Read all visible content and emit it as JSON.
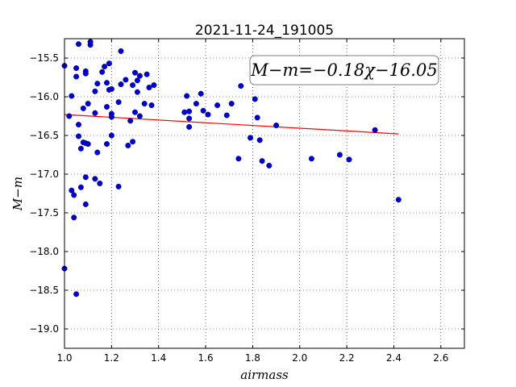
{
  "chart_data": {
    "type": "scatter",
    "title": "2021-11-24_191005",
    "xlabel": "airmass",
    "ylabel": "M−m",
    "xlim": [
      1.0,
      2.7
    ],
    "ylim": [
      -19.25,
      -15.25
    ],
    "y_inverted": false,
    "grid": true,
    "xticks": [
      1.0,
      1.2,
      1.4,
      1.6,
      1.8,
      2.0,
      2.2,
      2.4,
      2.6
    ],
    "xtick_labels": [
      "1.0",
      "1.2",
      "1.4",
      "1.6",
      "1.8",
      "2.0",
      "2.2",
      "2.4",
      "2.6"
    ],
    "yticks": [
      -15.5,
      -16.0,
      -16.5,
      -17.0,
      -17.5,
      -18.0,
      -18.5,
      -19.0
    ],
    "ytick_labels": [
      "−15.5",
      "−16.0",
      "−16.5",
      "−17.0",
      "−17.5",
      "−18.0",
      "−18.5",
      "−19.0"
    ],
    "annotation": "M−m=−0.18χ−16.05",
    "series": [
      {
        "kind": "points",
        "color": "#0000cc",
        "points": [
          [
            1.0,
            -15.6
          ],
          [
            1.0,
            -18.22
          ],
          [
            1.02,
            -16.25
          ],
          [
            1.03,
            -15.99
          ],
          [
            1.03,
            -17.21
          ],
          [
            1.04,
            -17.27
          ],
          [
            1.04,
            -17.56
          ],
          [
            1.05,
            -15.63
          ],
          [
            1.05,
            -15.74
          ],
          [
            1.05,
            -18.55
          ],
          [
            1.06,
            -15.32
          ],
          [
            1.06,
            -16.36
          ],
          [
            1.06,
            -16.51
          ],
          [
            1.07,
            -16.67
          ],
          [
            1.07,
            -17.17
          ],
          [
            1.08,
            -16.15
          ],
          [
            1.08,
            -16.59
          ],
          [
            1.09,
            -15.67
          ],
          [
            1.09,
            -15.7
          ],
          [
            1.09,
            -16.6
          ],
          [
            1.09,
            -17.04
          ],
          [
            1.09,
            -17.39
          ],
          [
            1.1,
            -16.09
          ],
          [
            1.1,
            -16.61
          ],
          [
            1.11,
            -15.33
          ],
          [
            1.11,
            -15.29
          ],
          [
            1.13,
            -15.93
          ],
          [
            1.13,
            -16.21
          ],
          [
            1.13,
            -17.06
          ],
          [
            1.14,
            -15.83
          ],
          [
            1.14,
            -16.72
          ],
          [
            1.15,
            -17.12
          ],
          [
            1.16,
            -15.68
          ],
          [
            1.17,
            -15.61
          ],
          [
            1.18,
            -15.82
          ],
          [
            1.18,
            -16.13
          ],
          [
            1.18,
            -16.61
          ],
          [
            1.19,
            -15.57
          ],
          [
            1.19,
            -15.91
          ],
          [
            1.2,
            -15.9
          ],
          [
            1.2,
            -16.22
          ],
          [
            1.2,
            -16.26
          ],
          [
            1.2,
            -16.5
          ],
          [
            1.23,
            -16.07
          ],
          [
            1.23,
            -17.16
          ],
          [
            1.24,
            -15.41
          ],
          [
            1.24,
            -15.84
          ],
          [
            1.26,
            -15.78
          ],
          [
            1.27,
            -16.63
          ],
          [
            1.28,
            -16.31
          ],
          [
            1.29,
            -15.85
          ],
          [
            1.29,
            -16.58
          ],
          [
            1.3,
            -16.2
          ],
          [
            1.3,
            -15.69
          ],
          [
            1.31,
            -15.94
          ],
          [
            1.31,
            -15.79
          ],
          [
            1.32,
            -15.73
          ],
          [
            1.32,
            -16.25
          ],
          [
            1.34,
            -16.09
          ],
          [
            1.35,
            -15.71
          ],
          [
            1.36,
            -15.88
          ],
          [
            1.37,
            -16.11
          ],
          [
            1.38,
            -15.85
          ],
          [
            1.51,
            -16.2
          ],
          [
            1.52,
            -15.99
          ],
          [
            1.53,
            -16.19
          ],
          [
            1.53,
            -16.28
          ],
          [
            1.53,
            -16.39
          ],
          [
            1.56,
            -16.09
          ],
          [
            1.58,
            -15.96
          ],
          [
            1.59,
            -16.18
          ],
          [
            1.61,
            -16.23
          ],
          [
            1.65,
            -16.11
          ],
          [
            1.69,
            -16.24
          ],
          [
            1.71,
            -16.09
          ],
          [
            1.74,
            -16.8
          ],
          [
            1.75,
            -15.86
          ],
          [
            1.79,
            -16.53
          ],
          [
            1.81,
            -16.03
          ],
          [
            1.82,
            -16.27
          ],
          [
            1.83,
            -16.56
          ],
          [
            1.84,
            -16.83
          ],
          [
            1.87,
            -16.89
          ],
          [
            1.9,
            -16.37
          ],
          [
            2.05,
            -16.8
          ],
          [
            2.17,
            -16.75
          ],
          [
            2.21,
            -16.81
          ],
          [
            2.32,
            -16.43
          ],
          [
            2.42,
            -17.33
          ]
        ]
      },
      {
        "kind": "line",
        "color": "#ff0000",
        "points": [
          [
            1.0,
            -16.23
          ],
          [
            2.42,
            -16.48
          ]
        ]
      }
    ]
  }
}
